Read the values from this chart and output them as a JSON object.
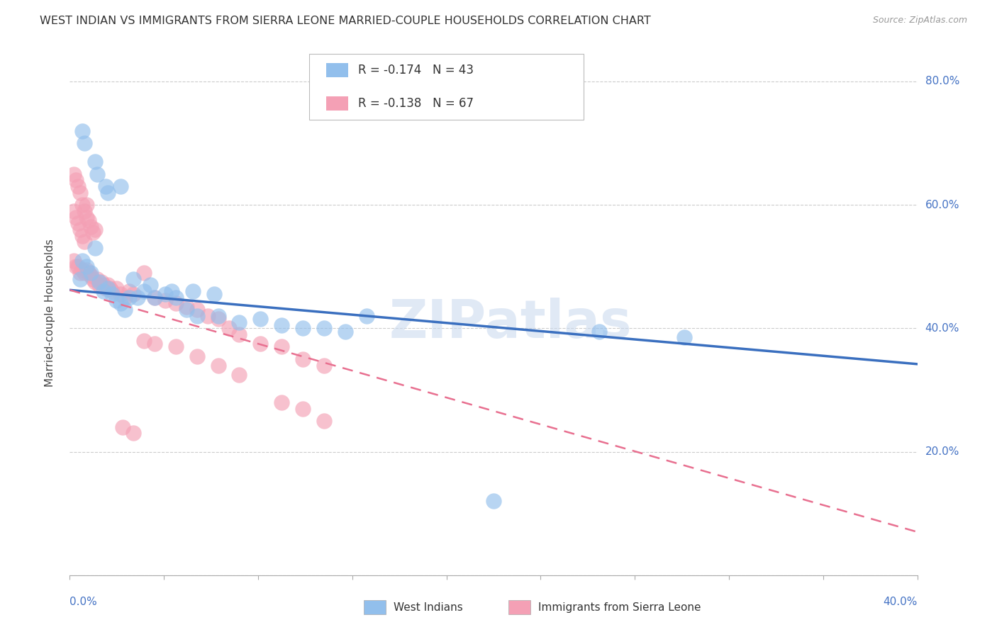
{
  "title": "WEST INDIAN VS IMMIGRANTS FROM SIERRA LEONE MARRIED-COUPLE HOUSEHOLDS CORRELATION CHART",
  "source": "Source: ZipAtlas.com",
  "ylabel": "Married-couple Households",
  "xlim": [
    0.0,
    0.4
  ],
  "ylim": [
    0.0,
    0.85
  ],
  "legend_blue_r": "R = -0.174",
  "legend_blue_n": "N = 43",
  "legend_pink_r": "R = -0.138",
  "legend_pink_n": "N = 67",
  "legend1_label": "West Indians",
  "legend2_label": "Immigrants from Sierra Leone",
  "blue_color": "#92BFEC",
  "pink_color": "#F4A0B5",
  "blue_line_color": "#3A6FBF",
  "pink_line_color": "#E87090",
  "watermark": "ZIPatlas",
  "blue_line_x0": 0.0,
  "blue_line_y0": 0.462,
  "blue_line_x1": 0.4,
  "blue_line_y1": 0.342,
  "pink_line_x0": 0.0,
  "pink_line_y0": 0.462,
  "pink_line_x1": 0.4,
  "pink_line_y1": 0.07,
  "blue_scatter_x": [
    0.006,
    0.007,
    0.012,
    0.013,
    0.017,
    0.018,
    0.024,
    0.005,
    0.006,
    0.008,
    0.01,
    0.012,
    0.014,
    0.016,
    0.018,
    0.02,
    0.022,
    0.024,
    0.026,
    0.028,
    0.032,
    0.035,
    0.04,
    0.045,
    0.05,
    0.055,
    0.06,
    0.07,
    0.08,
    0.09,
    0.1,
    0.11,
    0.12,
    0.13,
    0.14,
    0.03,
    0.038,
    0.048,
    0.058,
    0.068,
    0.25,
    0.29,
    0.2
  ],
  "blue_scatter_y": [
    0.72,
    0.7,
    0.67,
    0.65,
    0.63,
    0.62,
    0.63,
    0.48,
    0.51,
    0.5,
    0.49,
    0.53,
    0.475,
    0.46,
    0.465,
    0.455,
    0.445,
    0.44,
    0.43,
    0.45,
    0.45,
    0.46,
    0.45,
    0.455,
    0.45,
    0.43,
    0.42,
    0.42,
    0.41,
    0.415,
    0.405,
    0.4,
    0.4,
    0.395,
    0.42,
    0.48,
    0.47,
    0.46,
    0.46,
    0.455,
    0.395,
    0.385,
    0.12
  ],
  "pink_scatter_x": [
    0.002,
    0.003,
    0.004,
    0.005,
    0.006,
    0.007,
    0.008,
    0.002,
    0.003,
    0.004,
    0.005,
    0.006,
    0.007,
    0.008,
    0.009,
    0.01,
    0.011,
    0.012,
    0.002,
    0.003,
    0.004,
    0.005,
    0.006,
    0.007,
    0.008,
    0.009,
    0.01,
    0.011,
    0.012,
    0.013,
    0.014,
    0.015,
    0.016,
    0.017,
    0.018,
    0.019,
    0.02,
    0.022,
    0.024,
    0.026,
    0.028,
    0.03,
    0.035,
    0.04,
    0.045,
    0.05,
    0.055,
    0.06,
    0.065,
    0.07,
    0.075,
    0.08,
    0.09,
    0.1,
    0.11,
    0.12,
    0.035,
    0.04,
    0.05,
    0.06,
    0.07,
    0.08,
    0.1,
    0.11,
    0.12,
    0.025,
    0.03
  ],
  "pink_scatter_y": [
    0.65,
    0.64,
    0.63,
    0.62,
    0.6,
    0.59,
    0.6,
    0.59,
    0.58,
    0.57,
    0.56,
    0.55,
    0.54,
    0.58,
    0.575,
    0.565,
    0.555,
    0.56,
    0.51,
    0.5,
    0.5,
    0.49,
    0.495,
    0.49,
    0.495,
    0.49,
    0.485,
    0.48,
    0.475,
    0.48,
    0.47,
    0.475,
    0.47,
    0.465,
    0.47,
    0.465,
    0.46,
    0.465,
    0.455,
    0.45,
    0.46,
    0.455,
    0.49,
    0.45,
    0.445,
    0.44,
    0.435,
    0.43,
    0.42,
    0.415,
    0.4,
    0.39,
    0.375,
    0.37,
    0.35,
    0.34,
    0.38,
    0.375,
    0.37,
    0.355,
    0.34,
    0.325,
    0.28,
    0.27,
    0.25,
    0.24,
    0.23
  ]
}
